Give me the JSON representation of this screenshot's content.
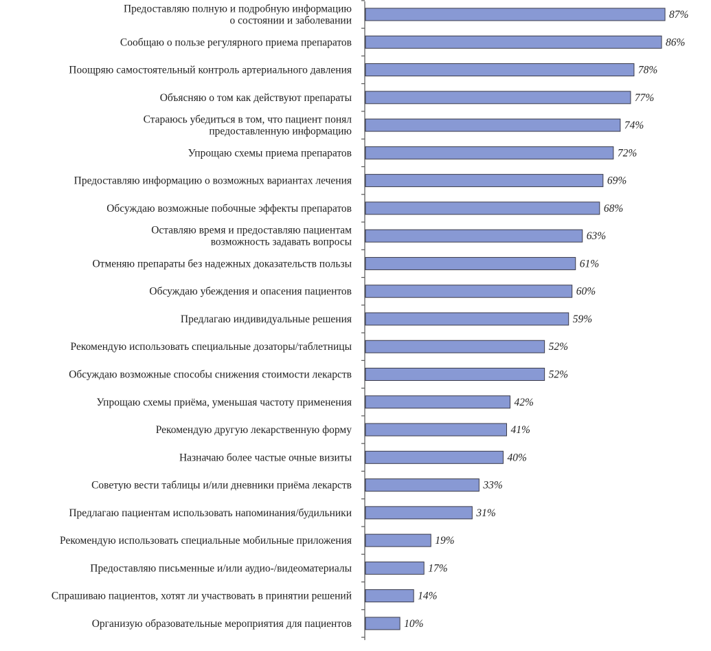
{
  "colors": {
    "bar": "#8899d4",
    "bar_border": "#3a3a48",
    "axis": "#555555"
  },
  "chart_data": {
    "type": "bar",
    "orientation": "horizontal",
    "title": "",
    "xlabel": "",
    "ylabel": "",
    "xlim": [
      0,
      100
    ],
    "value_suffix": "%",
    "grid": false,
    "categories": [
      "Предоставляю полную и подробную информацию\nо состоянии и заболевании",
      "Сообщаю о пользе регулярного приема препаратов",
      "Поощряю самостоятельный контроль артериального давления",
      "Объясняю о том как действуют препараты",
      "Стараюсь убедиться в том, что пациент понял\nпредоставленную информацию",
      "Упрощаю схемы приема препаратов",
      "Предоставляю информацию о возможных вариантах лечения",
      "Обсуждаю возможные побочные эффекты препаратов",
      "Оставляю время и предоставляю пациентам\nвозможность задавать вопросы",
      "Отменяю препараты без надежных доказательств пользы",
      "Обсуждаю убеждения и опасения пациентов",
      "Предлагаю индивидуальные решения",
      "Рекомендую использовать специальные дозаторы/таблетницы",
      "Обсуждаю возможные способы снижения стоимости лекарств",
      "Упрощаю схемы приёма, уменьшая частоту применения",
      "Рекомендую другую лекарственную форму",
      "Назначаю более частые очные визиты",
      "Советую вести таблицы и/или дневники приёма лекарств",
      "Предлагаю пациентам использовать напоминания/будильники",
      "Рекомендую использовать специальные мобильные приложения",
      "Предоставляю письменные и/или аудио-/видеоматериалы",
      "Спрашиваю пациентов, хотят ли участвовать в принятии решений",
      "Организую образовательные мероприятия для пациентов"
    ],
    "values": [
      87,
      86,
      78,
      77,
      74,
      72,
      69,
      68,
      63,
      61,
      60,
      59,
      52,
      52,
      42,
      41,
      40,
      33,
      31,
      19,
      17,
      14,
      10
    ]
  }
}
